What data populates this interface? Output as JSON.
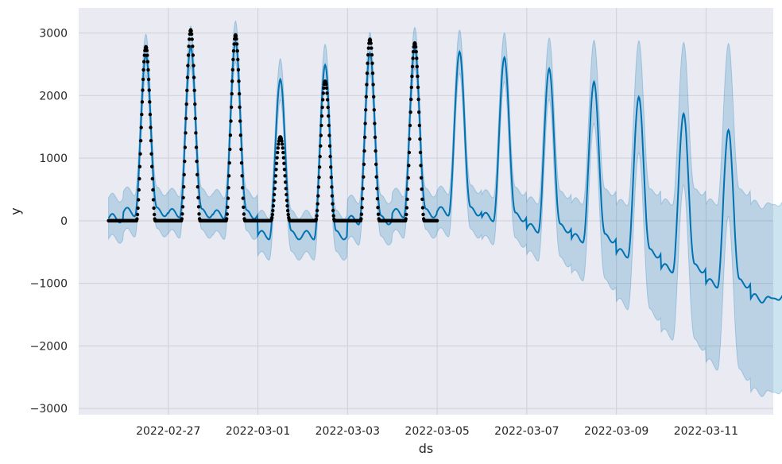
{
  "chart_data": {
    "type": "line",
    "title": "",
    "xlabel": "ds",
    "ylabel": "y",
    "x_axis": "datetime",
    "xlim": [
      "2022-02-25T00:00",
      "2022-03-12T12:00"
    ],
    "ylim": [
      -3100,
      3400
    ],
    "grid": true,
    "xticks": [
      "2022-02-27",
      "2022-03-01",
      "2022-03-03",
      "2022-03-05",
      "2022-03-07",
      "2022-03-09",
      "2022-03-11"
    ],
    "yticks": [
      3000,
      2000,
      1000,
      0,
      -1000,
      -2000,
      -3000
    ],
    "ytick_labels": [
      "3000",
      "2000",
      "1000",
      "0",
      "−1000",
      "−2000",
      "−3000"
    ],
    "colors": {
      "background": "#eaeaf2",
      "grid": "#cfcfd6",
      "forecast_line": "#0072b2",
      "interval_band": "#0072b2",
      "observed_points": "#000000"
    },
    "observed": {
      "x_start": "2022-02-25T16:00",
      "x_end": "2022-03-05T00:00",
      "daily_peaks": [
        {
          "date": "2022-02-26",
          "peak_time": "12:00",
          "y": 2780
        },
        {
          "date": "2022-02-27",
          "peak_time": "12:00",
          "y": 3050
        },
        {
          "date": "2022-02-28",
          "peak_time": "12:00",
          "y": 2970
        },
        {
          "date": "2022-03-01",
          "peak_time": "12:00",
          "y": 1340
        },
        {
          "date": "2022-03-02",
          "peak_time": "12:00",
          "y": 2230
        },
        {
          "date": "2022-03-03",
          "peak_time": "12:00",
          "y": 2900
        },
        {
          "date": "2022-03-04",
          "peak_time": "12:00",
          "y": 2840
        }
      ],
      "night_value": 0
    },
    "forecast": {
      "x_start": "2022-02-25T16:00",
      "x_end": "2022-03-12T23:00",
      "daily_peaks": [
        {
          "date": "2022-02-26",
          "y": 2650
        },
        {
          "date": "2022-02-27",
          "y": 2780
        },
        {
          "date": "2022-02-28",
          "y": 2860
        },
        {
          "date": "2022-03-01",
          "y": 2260
        },
        {
          "date": "2022-03-02",
          "y": 2490
        },
        {
          "date": "2022-03-03",
          "y": 2680
        },
        {
          "date": "2022-03-04",
          "y": 2760
        },
        {
          "date": "2022-03-05",
          "y": 2700
        },
        {
          "date": "2022-03-06",
          "y": 2610
        },
        {
          "date": "2022-03-07",
          "y": 2430
        },
        {
          "date": "2022-03-08",
          "y": 2220
        },
        {
          "date": "2022-03-09",
          "y": 1980
        },
        {
          "date": "2022-03-10",
          "y": 1710
        },
        {
          "date": "2022-03-11",
          "y": 1450
        }
      ],
      "night_levels": [
        {
          "date": "2022-02-25",
          "y": 40
        },
        {
          "date": "2022-02-26",
          "y": 140
        },
        {
          "date": "2022-02-27",
          "y": 120
        },
        {
          "date": "2022-02-28",
          "y": 100
        },
        {
          "date": "2022-03-01",
          "y": -230
        },
        {
          "date": "2022-03-02",
          "y": -230
        },
        {
          "date": "2022-03-03",
          "y": 10
        },
        {
          "date": "2022-03-04",
          "y": 120
        },
        {
          "date": "2022-03-05",
          "y": 150
        },
        {
          "date": "2022-03-06",
          "y": 60
        },
        {
          "date": "2022-03-07",
          "y": -120
        },
        {
          "date": "2022-03-08",
          "y": -280
        },
        {
          "date": "2022-03-09",
          "y": -520
        },
        {
          "date": "2022-03-10",
          "y": -760
        },
        {
          "date": "2022-03-11",
          "y": -1000
        },
        {
          "date": "2022-03-12",
          "y": -1240
        }
      ],
      "interval_halfwidth": [
        {
          "date": "2022-02-25",
          "y": 330
        },
        {
          "date": "2022-03-05",
          "y": 330
        },
        {
          "date": "2022-03-06",
          "y": 360
        },
        {
          "date": "2022-03-07",
          "y": 420
        },
        {
          "date": "2022-03-08",
          "y": 560
        },
        {
          "date": "2022-03-09",
          "y": 770
        },
        {
          "date": "2022-03-10",
          "y": 1020
        },
        {
          "date": "2022-03-11",
          "y": 1260
        },
        {
          "date": "2022-03-12",
          "y": 1500
        }
      ]
    }
  }
}
